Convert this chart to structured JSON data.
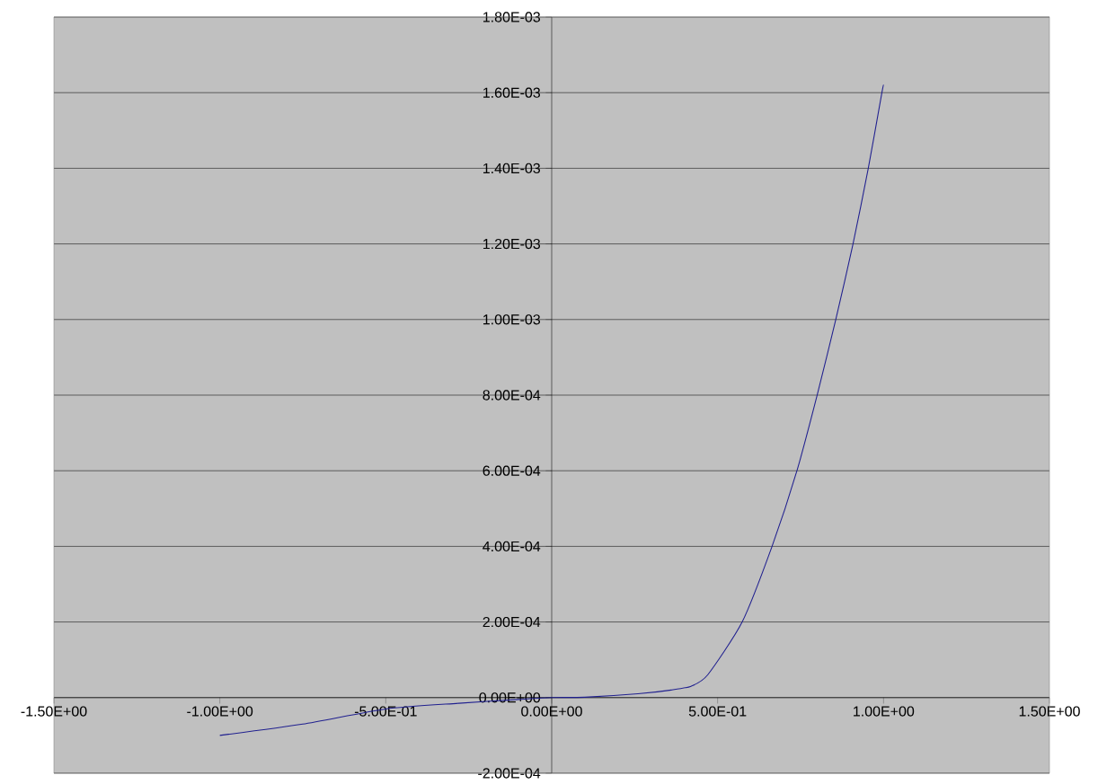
{
  "chart_data": {
    "type": "line",
    "x": [
      -1.0,
      -0.75,
      -0.5,
      -0.28,
      -0.1,
      0.0,
      0.1,
      0.26,
      0.36,
      0.42,
      0.47,
      0.574,
      0.664,
      0.739,
      0.8,
      0.856,
      0.908,
      0.954,
      0.995,
      1.0
    ],
    "series": [
      {
        "color": "#20208f",
        "values": [
          -0.0001,
          -7e-05,
          -3e-05,
          -1.5e-05,
          -5e-06,
          0.0,
          1e-06,
          1e-05,
          2e-05,
          3e-05,
          6e-05,
          0.0002,
          0.0004,
          0.0006,
          0.0008,
          0.001,
          0.0012,
          0.0014,
          0.0016,
          0.00162
        ]
      }
    ],
    "xlim": [
      -1.5,
      1.5
    ],
    "xticks": [
      {
        "value": -1.5,
        "label": "-1.50E+00"
      },
      {
        "value": -1.0,
        "label": "-1.00E+00"
      },
      {
        "value": -0.5,
        "label": "-5.00E-01"
      },
      {
        "value": 0.0,
        "label": "0.00E+00"
      },
      {
        "value": 0.5,
        "label": "5.00E-01"
      },
      {
        "value": 1.0,
        "label": "1.00E+00"
      },
      {
        "value": 1.5,
        "label": "1.50E+00"
      }
    ],
    "ylim": [
      -0.0002,
      0.0018
    ],
    "yticks": [
      {
        "value": -0.0002,
        "label": "-2.00E-04"
      },
      {
        "value": 0.0,
        "label": "0.00E+00"
      },
      {
        "value": 0.0002,
        "label": "2.00E-04"
      },
      {
        "value": 0.0004,
        "label": "4.00E-04"
      },
      {
        "value": 0.0006,
        "label": "6.00E-04"
      },
      {
        "value": 0.0008,
        "label": "8.00E-04"
      },
      {
        "value": 0.001,
        "label": "1.00E-03"
      },
      {
        "value": 0.0012,
        "label": "1.20E-03"
      },
      {
        "value": 0.0014,
        "label": "1.40E-03"
      },
      {
        "value": 0.0016,
        "label": "1.60E-03"
      },
      {
        "value": 0.0018,
        "label": "1.80E-03"
      }
    ],
    "grid": "y",
    "line_style": "solid"
  }
}
